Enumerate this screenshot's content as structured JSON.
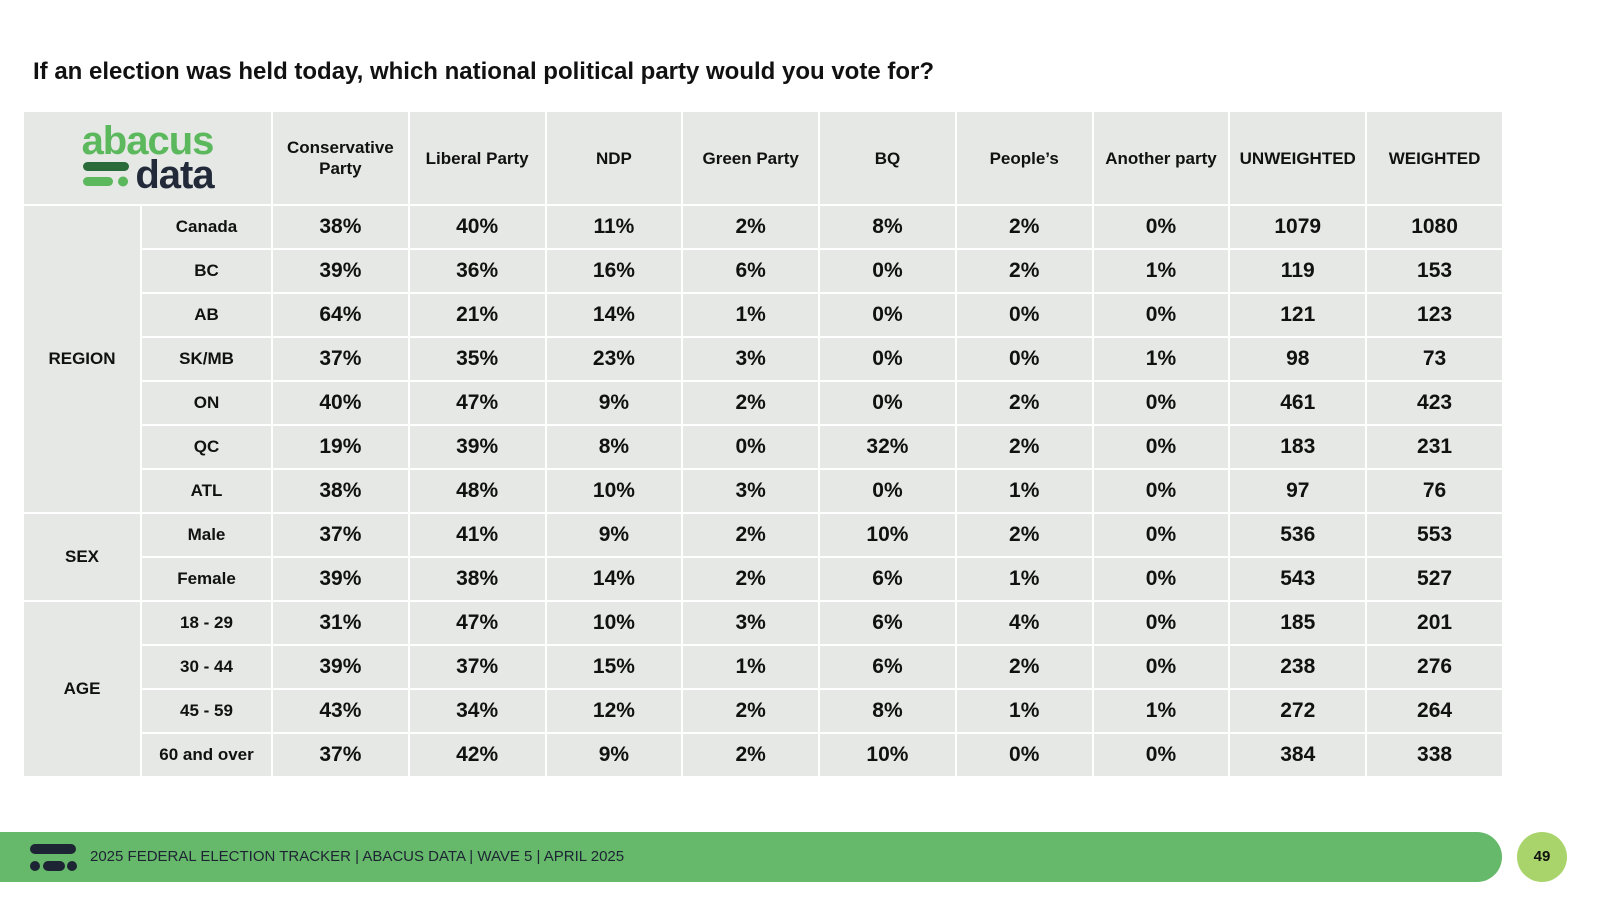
{
  "title": "If an election was held today, which national political party would you vote for?",
  "logo": {
    "top": "abacus",
    "bottom": "data"
  },
  "table": {
    "headers": [
      "Conservative Party",
      "Liberal Party",
      "NDP",
      "Green Party",
      "BQ",
      "People’s",
      "Another party",
      "UNWEIGHTED",
      "WEIGHTED"
    ],
    "groups": [
      {
        "label": "REGION",
        "rows": [
          {
            "label": "Canada",
            "cells": [
              "38%",
              "40%",
              "11%",
              "2%",
              "8%",
              "2%",
              "0%",
              "1079",
              "1080"
            ]
          },
          {
            "label": "BC",
            "cells": [
              "39%",
              "36%",
              "16%",
              "6%",
              "0%",
              "2%",
              "1%",
              "119",
              "153"
            ]
          },
          {
            "label": "AB",
            "cells": [
              "64%",
              "21%",
              "14%",
              "1%",
              "0%",
              "0%",
              "0%",
              "121",
              "123"
            ]
          },
          {
            "label": "SK/MB",
            "cells": [
              "37%",
              "35%",
              "23%",
              "3%",
              "0%",
              "0%",
              "1%",
              "98",
              "73"
            ]
          },
          {
            "label": "ON",
            "cells": [
              "40%",
              "47%",
              "9%",
              "2%",
              "0%",
              "2%",
              "0%",
              "461",
              "423"
            ]
          },
          {
            "label": "QC",
            "cells": [
              "19%",
              "39%",
              "8%",
              "0%",
              "32%",
              "2%",
              "0%",
              "183",
              "231"
            ]
          },
          {
            "label": "ATL",
            "cells": [
              "38%",
              "48%",
              "10%",
              "3%",
              "0%",
              "1%",
              "0%",
              "97",
              "76"
            ]
          }
        ]
      },
      {
        "label": "SEX",
        "rows": [
          {
            "label": "Male",
            "cells": [
              "37%",
              "41%",
              "9%",
              "2%",
              "10%",
              "2%",
              "0%",
              "536",
              "553"
            ]
          },
          {
            "label": "Female",
            "cells": [
              "39%",
              "38%",
              "14%",
              "2%",
              "6%",
              "1%",
              "0%",
              "543",
              "527"
            ]
          }
        ]
      },
      {
        "label": "AGE",
        "rows": [
          {
            "label": "18 - 29",
            "cells": [
              "31%",
              "47%",
              "10%",
              "3%",
              "6%",
              "4%",
              "0%",
              "185",
              "201"
            ]
          },
          {
            "label": "30 - 44",
            "cells": [
              "39%",
              "37%",
              "15%",
              "1%",
              "6%",
              "2%",
              "0%",
              "238",
              "276"
            ]
          },
          {
            "label": "45 - 59",
            "cells": [
              "43%",
              "34%",
              "12%",
              "2%",
              "8%",
              "1%",
              "1%",
              "272",
              "264"
            ]
          },
          {
            "label": "60 and over",
            "cells": [
              "37%",
              "42%",
              "9%",
              "2%",
              "10%",
              "0%",
              "0%",
              "384",
              "338"
            ]
          }
        ]
      }
    ]
  },
  "footer": {
    "text": "2025 FEDERAL ELECTION TRACKER  |  ABACUS DATA  |  WAVE 5  |  APRIL 2025",
    "page": "49"
  }
}
